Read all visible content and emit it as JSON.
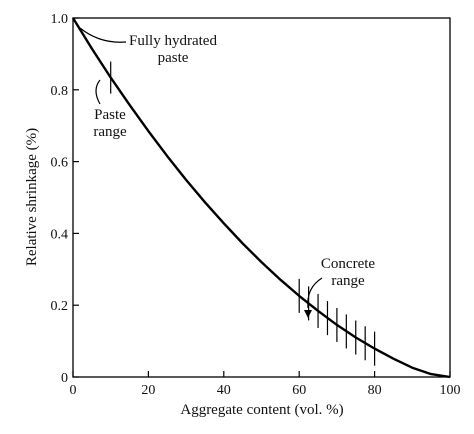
{
  "chart_data": {
    "type": "line",
    "title": "",
    "xlabel": "Aggregate content (vol. %)",
    "ylabel": "Relative shrinkage (%)",
    "xlim": [
      0,
      100
    ],
    "ylim": [
      0,
      1.0
    ],
    "x_ticks": [
      0,
      20,
      40,
      60,
      80,
      100
    ],
    "x_tick_labels": [
      "0",
      "20",
      "40",
      "60",
      "80",
      "100"
    ],
    "y_ticks": [
      0,
      0.2,
      0.4,
      0.6,
      0.8,
      1.0
    ],
    "y_tick_labels": [
      "0",
      "0.2",
      "0.4",
      "0.6",
      "0.8",
      "1.0"
    ],
    "grid": false,
    "legend": "none",
    "series": [
      {
        "x": [
          0,
          5,
          10,
          15,
          20,
          25,
          30,
          35,
          40,
          45,
          50,
          55,
          60,
          65,
          70,
          75,
          80,
          85,
          90,
          95,
          100
        ],
        "y": [
          1.0,
          0.915,
          0.834,
          0.758,
          0.685,
          0.615,
          0.549,
          0.487,
          0.428,
          0.372,
          0.32,
          0.271,
          0.226,
          0.184,
          0.145,
          0.11,
          0.079,
          0.051,
          0.026,
          0.008,
          0.0
        ]
      }
    ],
    "paste_range_marks": [
      {
        "x": 10,
        "y": 0.834
      }
    ],
    "concrete_range_marks": [
      {
        "x": 60,
        "y": 0.226
      },
      {
        "x": 62.5,
        "y": 0.205
      },
      {
        "x": 65,
        "y": 0.184
      },
      {
        "x": 67.5,
        "y": 0.164
      },
      {
        "x": 70,
        "y": 0.145
      },
      {
        "x": 72.5,
        "y": 0.127
      },
      {
        "x": 75,
        "y": 0.11
      },
      {
        "x": 77.5,
        "y": 0.094
      },
      {
        "x": 80,
        "y": 0.079
      }
    ],
    "annotations": {
      "fully_hydrated_paste": [
        "Fully hydrated",
        "paste"
      ],
      "paste_range": [
        "Paste",
        "range"
      ],
      "concrete_range": [
        "Concrete",
        "range"
      ]
    }
  },
  "style": {
    "line_color": "#000000",
    "text_color": "#111111"
  }
}
